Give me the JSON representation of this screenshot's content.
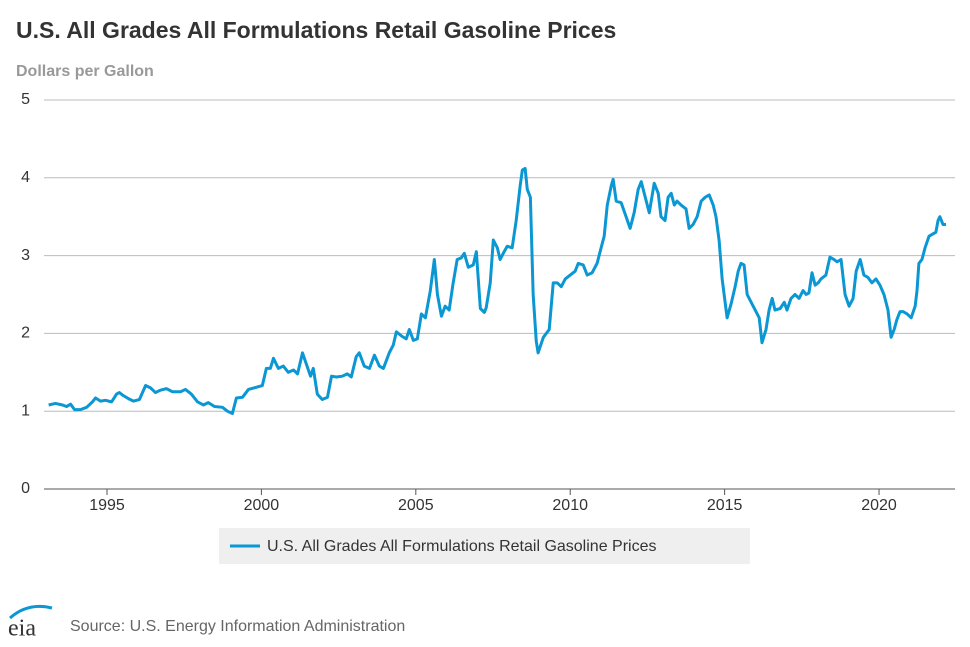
{
  "chart_data": {
    "type": "line",
    "title": "U.S. All Grades All Formulations Retail Gasoline Prices",
    "y_label": "Dollars per Gallon",
    "source": "Source: U.S. Energy Information Administration",
    "logo": "eia",
    "xlim": [
      1992.96,
      2022.46
    ],
    "xticks": [
      1995,
      2000,
      2005,
      2010,
      2015,
      2020
    ],
    "ylim": [
      0,
      5
    ],
    "yticks": [
      0,
      1,
      2,
      3,
      4,
      5
    ],
    "grid": true,
    "legend": "bottom",
    "x": [
      1993.11,
      1993.33,
      1993.56,
      1993.69,
      1993.82,
      1993.95,
      1994.14,
      1994.34,
      1994.53,
      1994.63,
      1994.79,
      1994.95,
      1995.15,
      1995.31,
      1995.4,
      1995.53,
      1995.7,
      1995.86,
      1996.05,
      1996.25,
      1996.41,
      1996.57,
      1996.73,
      1996.93,
      1997.12,
      1997.38,
      1997.54,
      1997.73,
      1997.93,
      1998.12,
      1998.28,
      1998.48,
      1998.74,
      1998.9,
      1999.06,
      1999.19,
      1999.39,
      1999.58,
      1999.77,
      2000.03,
      2000.16,
      2000.29,
      2000.39,
      2000.55,
      2000.71,
      2000.87,
      2001.04,
      2001.17,
      2001.33,
      2001.46,
      2001.59,
      2001.68,
      2001.81,
      2001.97,
      2002.14,
      2002.27,
      2002.43,
      2002.62,
      2002.78,
      2002.91,
      2003.07,
      2003.17,
      2003.33,
      2003.5,
      2003.66,
      2003.82,
      2003.95,
      2004.14,
      2004.27,
      2004.37,
      2004.56,
      2004.69,
      2004.79,
      2004.92,
      2005.05,
      2005.18,
      2005.31,
      2005.47,
      2005.6,
      2005.7,
      2005.83,
      2005.95,
      2006.08,
      2006.21,
      2006.34,
      2006.47,
      2006.57,
      2006.7,
      2006.86,
      2006.96,
      2007.09,
      2007.22,
      2007.28,
      2007.41,
      2007.51,
      2007.64,
      2007.73,
      2007.86,
      2007.96,
      2008.12,
      2008.25,
      2008.38,
      2008.45,
      2008.54,
      2008.61,
      2008.71,
      2008.8,
      2008.9,
      2008.96,
      2009.13,
      2009.32,
      2009.45,
      2009.58,
      2009.71,
      2009.84,
      2010.0,
      2010.16,
      2010.26,
      2010.42,
      2010.55,
      2010.71,
      2010.87,
      2011.0,
      2011.1,
      2011.2,
      2011.33,
      2011.39,
      2011.49,
      2011.65,
      2011.81,
      2011.94,
      2012.07,
      2012.2,
      2012.3,
      2012.43,
      2012.56,
      2012.72,
      2012.85,
      2012.94,
      2013.07,
      2013.17,
      2013.27,
      2013.37,
      2013.46,
      2013.59,
      2013.75,
      2013.85,
      2013.98,
      2014.11,
      2014.24,
      2014.37,
      2014.5,
      2014.63,
      2014.72,
      2014.82,
      2014.92,
      2015.08,
      2015.21,
      2015.34,
      2015.44,
      2015.53,
      2015.63,
      2015.73,
      2015.86,
      2015.99,
      2016.12,
      2016.21,
      2016.34,
      2016.44,
      2016.54,
      2016.63,
      2016.8,
      2016.93,
      2017.02,
      2017.15,
      2017.28,
      2017.41,
      2017.54,
      2017.64,
      2017.73,
      2017.83,
      2017.93,
      2018.03,
      2018.12,
      2018.28,
      2018.41,
      2018.54,
      2018.64,
      2018.77,
      2018.9,
      2019.03,
      2019.16,
      2019.26,
      2019.39,
      2019.51,
      2019.64,
      2019.77,
      2019.9,
      2020.03,
      2020.16,
      2020.29,
      2020.39,
      2020.49,
      2020.58,
      2020.68,
      2020.78,
      2020.91,
      2021.04,
      2021.17,
      2021.23,
      2021.29,
      2021.39,
      2021.49,
      2021.62,
      2021.75,
      2021.84,
      2021.91,
      2021.97,
      2022.07,
      2022.17
    ],
    "series": [
      {
        "name": "U.S. All Grades All Formulations Retail Gasoline Prices",
        "color": "#0a97d3",
        "values": [
          1.08,
          1.1,
          1.08,
          1.06,
          1.09,
          1.02,
          1.02,
          1.05,
          1.12,
          1.17,
          1.13,
          1.14,
          1.12,
          1.22,
          1.24,
          1.2,
          1.16,
          1.13,
          1.15,
          1.33,
          1.3,
          1.24,
          1.27,
          1.29,
          1.25,
          1.25,
          1.28,
          1.22,
          1.12,
          1.08,
          1.11,
          1.06,
          1.05,
          1.0,
          0.97,
          1.17,
          1.18,
          1.28,
          1.3,
          1.33,
          1.55,
          1.55,
          1.68,
          1.55,
          1.58,
          1.5,
          1.53,
          1.48,
          1.75,
          1.6,
          1.45,
          1.55,
          1.22,
          1.15,
          1.18,
          1.45,
          1.44,
          1.45,
          1.48,
          1.44,
          1.7,
          1.75,
          1.58,
          1.55,
          1.72,
          1.58,
          1.55,
          1.75,
          1.85,
          2.02,
          1.96,
          1.93,
          2.05,
          1.91,
          1.93,
          2.25,
          2.2,
          2.55,
          2.95,
          2.5,
          2.22,
          2.35,
          2.3,
          2.65,
          2.95,
          2.97,
          3.03,
          2.85,
          2.88,
          3.05,
          2.32,
          2.27,
          2.33,
          2.65,
          3.2,
          3.1,
          2.95,
          3.05,
          3.12,
          3.1,
          3.45,
          3.9,
          4.1,
          4.12,
          3.85,
          3.75,
          2.5,
          1.9,
          1.75,
          1.95,
          2.05,
          2.65,
          2.65,
          2.6,
          2.7,
          2.75,
          2.8,
          2.9,
          2.88,
          2.75,
          2.78,
          2.9,
          3.1,
          3.25,
          3.65,
          3.9,
          3.98,
          3.7,
          3.68,
          3.5,
          3.35,
          3.55,
          3.85,
          3.95,
          3.75,
          3.55,
          3.93,
          3.8,
          3.5,
          3.45,
          3.75,
          3.8,
          3.65,
          3.7,
          3.65,
          3.6,
          3.35,
          3.4,
          3.5,
          3.7,
          3.75,
          3.78,
          3.65,
          3.5,
          3.2,
          2.7,
          2.2,
          2.38,
          2.6,
          2.8,
          2.9,
          2.88,
          2.5,
          2.4,
          2.3,
          2.2,
          1.88,
          2.05,
          2.3,
          2.45,
          2.3,
          2.32,
          2.4,
          2.3,
          2.45,
          2.5,
          2.45,
          2.55,
          2.5,
          2.52,
          2.78,
          2.62,
          2.65,
          2.7,
          2.75,
          2.98,
          2.95,
          2.92,
          2.95,
          2.5,
          2.35,
          2.45,
          2.8,
          2.95,
          2.75,
          2.72,
          2.65,
          2.7,
          2.62,
          2.5,
          2.3,
          1.95,
          2.05,
          2.18,
          2.28,
          2.28,
          2.25,
          2.2,
          2.35,
          2.55,
          2.9,
          2.95,
          3.1,
          3.25,
          3.28,
          3.3,
          3.45,
          3.5,
          3.4,
          3.4
        ]
      }
    ]
  }
}
